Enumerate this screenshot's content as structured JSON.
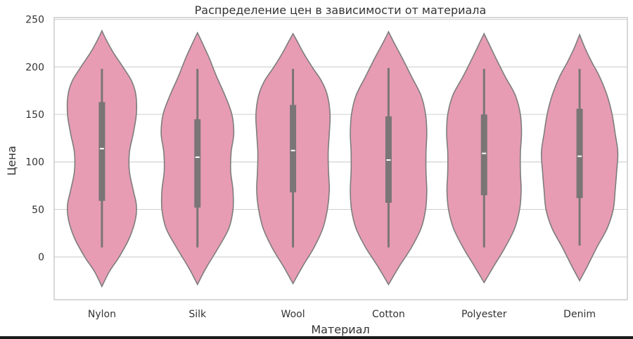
{
  "chart_data": {
    "type": "violin",
    "title": "Распределение цен в зависимости от материала",
    "xlabel": "Материал",
    "ylabel": "Цена",
    "ylim": [
      -45,
      252
    ],
    "yticks": [
      0,
      50,
      100,
      150,
      200,
      250
    ],
    "grid": true,
    "categories": [
      "Nylon",
      "Silk",
      "Wool",
      "Cotton",
      "Polyester",
      "Denim"
    ],
    "violins": [
      {
        "category": "Nylon",
        "min_extent": -31,
        "max_extent": 238,
        "whisker_low": 10,
        "whisker_high": 198,
        "q1": 59,
        "median": 114,
        "q3": 163,
        "density_profile": [
          [
            -31,
            0
          ],
          [
            -15,
            0.2
          ],
          [
            0,
            0.45
          ],
          [
            20,
            0.72
          ],
          [
            40,
            0.88
          ],
          [
            55,
            0.9
          ],
          [
            70,
            0.82
          ],
          [
            90,
            0.72
          ],
          [
            110,
            0.72
          ],
          [
            130,
            0.82
          ],
          [
            150,
            0.9
          ],
          [
            170,
            0.89
          ],
          [
            185,
            0.78
          ],
          [
            200,
            0.55
          ],
          [
            215,
            0.3
          ],
          [
            228,
            0.12
          ],
          [
            238,
            0
          ]
        ]
      },
      {
        "category": "Silk",
        "min_extent": -29,
        "max_extent": 236,
        "whisker_low": 10,
        "whisker_high": 198,
        "q1": 52,
        "median": 105,
        "q3": 145,
        "density_profile": [
          [
            -29,
            0
          ],
          [
            -12,
            0.22
          ],
          [
            10,
            0.55
          ],
          [
            30,
            0.82
          ],
          [
            50,
            0.93
          ],
          [
            70,
            0.93
          ],
          [
            90,
            0.87
          ],
          [
            110,
            0.88
          ],
          [
            130,
            0.95
          ],
          [
            150,
            0.9
          ],
          [
            170,
            0.72
          ],
          [
            190,
            0.5
          ],
          [
            210,
            0.3
          ],
          [
            225,
            0.13
          ],
          [
            236,
            0
          ]
        ]
      },
      {
        "category": "Wool",
        "min_extent": -28,
        "max_extent": 235,
        "whisker_low": 10,
        "whisker_high": 198,
        "q1": 68,
        "median": 112,
        "q3": 160,
        "density_profile": [
          [
            -28,
            0
          ],
          [
            -10,
            0.25
          ],
          [
            10,
            0.55
          ],
          [
            30,
            0.78
          ],
          [
            50,
            0.9
          ],
          [
            70,
            0.95
          ],
          [
            90,
            0.93
          ],
          [
            110,
            0.92
          ],
          [
            130,
            0.95
          ],
          [
            150,
            0.97
          ],
          [
            170,
            0.9
          ],
          [
            185,
            0.75
          ],
          [
            200,
            0.5
          ],
          [
            215,
            0.27
          ],
          [
            227,
            0.11
          ],
          [
            235,
            0
          ]
        ]
      },
      {
        "category": "Cotton",
        "min_extent": -29,
        "max_extent": 237,
        "whisker_low": 10,
        "whisker_high": 199,
        "q1": 57,
        "median": 102,
        "q3": 148,
        "density_profile": [
          [
            -29,
            0
          ],
          [
            -10,
            0.28
          ],
          [
            10,
            0.6
          ],
          [
            30,
            0.85
          ],
          [
            50,
            0.97
          ],
          [
            70,
            1.0
          ],
          [
            90,
            0.98
          ],
          [
            110,
            0.98
          ],
          [
            130,
            1.0
          ],
          [
            150,
            0.97
          ],
          [
            170,
            0.85
          ],
          [
            190,
            0.6
          ],
          [
            210,
            0.35
          ],
          [
            225,
            0.15
          ],
          [
            237,
            0
          ]
        ]
      },
      {
        "category": "Polyester",
        "min_extent": -27,
        "max_extent": 235,
        "whisker_low": 10,
        "whisker_high": 198,
        "q1": 65,
        "median": 109,
        "q3": 150,
        "density_profile": [
          [
            -27,
            0
          ],
          [
            -10,
            0.25
          ],
          [
            10,
            0.55
          ],
          [
            30,
            0.8
          ],
          [
            50,
            0.93
          ],
          [
            70,
            0.97
          ],
          [
            90,
            0.95
          ],
          [
            110,
            0.95
          ],
          [
            130,
            0.98
          ],
          [
            150,
            0.95
          ],
          [
            170,
            0.82
          ],
          [
            190,
            0.55
          ],
          [
            210,
            0.3
          ],
          [
            225,
            0.12
          ],
          [
            235,
            0
          ]
        ]
      },
      {
        "category": "Denim",
        "min_extent": -25,
        "max_extent": 234,
        "whisker_low": 12,
        "whisker_high": 198,
        "q1": 62,
        "median": 106,
        "q3": 156,
        "density_profile": [
          [
            -25,
            0
          ],
          [
            -10,
            0.2
          ],
          [
            10,
            0.45
          ],
          [
            30,
            0.72
          ],
          [
            50,
            0.88
          ],
          [
            70,
            0.93
          ],
          [
            90,
            0.97
          ],
          [
            110,
            1.0
          ],
          [
            130,
            0.93
          ],
          [
            150,
            0.85
          ],
          [
            170,
            0.72
          ],
          [
            190,
            0.52
          ],
          [
            205,
            0.32
          ],
          [
            220,
            0.14
          ],
          [
            234,
            0
          ]
        ]
      }
    ],
    "colors": {
      "violin_fill": "#e79cb4",
      "violin_edge": "#7d7d7d",
      "box": "#7a7576",
      "median": "#ffffff",
      "grid": "#d3d3d3",
      "frame": "#cccccc",
      "text": "#333333"
    }
  }
}
